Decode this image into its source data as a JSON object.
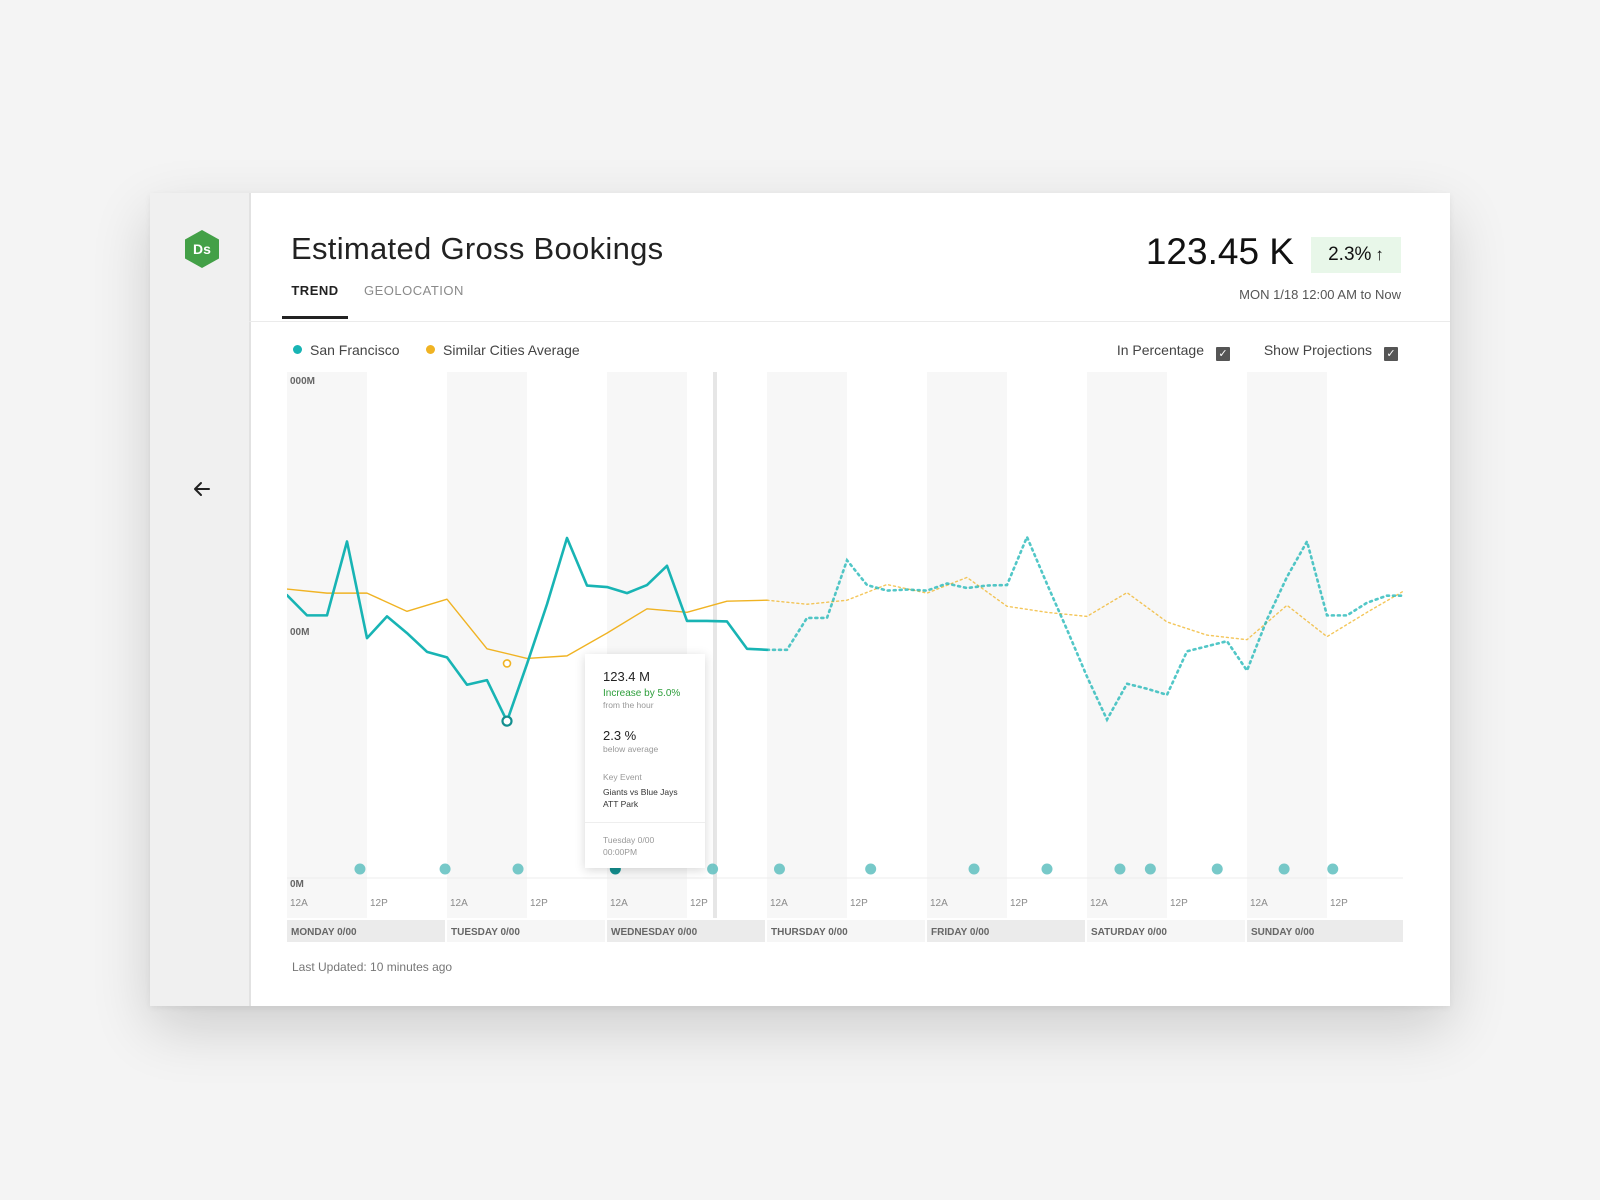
{
  "app": {
    "logo_text": "Ds",
    "back_icon": "arrow-left-icon"
  },
  "header": {
    "title": "Estimated Gross Bookings",
    "tabs": [
      {
        "label": "TREND",
        "active": true
      },
      {
        "label": "GEOLOCATION",
        "active": false
      }
    ],
    "metric_value": "123.45 K",
    "metric_change": "2.3%",
    "metric_change_icon": "arrow-up-icon",
    "date_range": "MON 1/18 12:00 AM to Now"
  },
  "legend": {
    "items": [
      {
        "label": "San Francisco",
        "color": "#18b4b4"
      },
      {
        "label": "Similar Cities Average",
        "color": "#f0b323"
      }
    ]
  },
  "toggles": {
    "percentage": {
      "label": "In Percentage",
      "checked": true
    },
    "projections": {
      "label": "Show Projections",
      "checked": true
    }
  },
  "chart_data": {
    "type": "line",
    "ylabels": [
      "000M",
      "00M",
      "0M"
    ],
    "x_ticks": [
      "12A",
      "12P"
    ],
    "days": [
      "MONDAY 0/00",
      "TUESDAY 0/00",
      "WEDNESDAY 0/00",
      "THURSDAY 0/00",
      "FRIDAY 0/00",
      "SATURDAY 0/00",
      "SUNDAY 0/00"
    ],
    "series": [
      {
        "name": "San Francisco",
        "color": "#18b4b4",
        "x": [
          0,
          0.25,
          0.5,
          0.75,
          1,
          1.25,
          1.5,
          1.75,
          2,
          2.25,
          2.5,
          2.75,
          3,
          3.25,
          3.5,
          3.75,
          4,
          4.25,
          4.5,
          4.75,
          5,
          5.25,
          5.5,
          5.75,
          6,
          6.25,
          6.5,
          6.75,
          7,
          7.25,
          7.5,
          7.75,
          8,
          8.25,
          8.5,
          8.75,
          9,
          9.25,
          9.5,
          9.75,
          10,
          10.25,
          10.5,
          10.75,
          11,
          11.25,
          11.5,
          11.75,
          12,
          12.25,
          12.5,
          12.75,
          13,
          13.25,
          13.5,
          13.75,
          14
        ],
        "y": [
          0.559,
          0.519,
          0.519,
          0.665,
          0.474,
          0.517,
          0.484,
          0.447,
          0.436,
          0.382,
          0.391,
          0.31,
          0.423,
          0.541,
          0.672,
          0.578,
          0.575,
          0.563,
          0.579,
          0.617,
          0.508,
          0.508,
          0.507,
          0.453,
          0.451,
          0.451,
          0.514,
          0.514,
          0.628,
          0.579,
          0.568,
          0.57,
          0.568,
          0.582,
          0.573,
          0.578,
          0.579,
          0.674,
          0.581,
          0.491,
          0.398,
          0.313,
          0.384,
          0.374,
          0.362,
          0.448,
          0.458,
          0.468,
          0.41,
          0.511,
          0.595,
          0.665,
          0.519,
          0.519,
          0.544,
          0.558,
          0.558
        ],
        "projected_from_index": 24
      },
      {
        "name": "Similar Cities Average",
        "color": "#f0b323",
        "x": [
          0,
          0.5,
          1,
          1.5,
          2,
          2.5,
          3,
          3.5,
          4,
          4.5,
          5,
          5.5,
          6,
          6.5,
          7,
          7.5,
          8,
          8.5,
          9,
          9.5,
          10,
          10.5,
          11,
          11.5,
          12,
          12.5,
          13,
          13.5,
          14
        ],
        "y": [
          0.571,
          0.563,
          0.563,
          0.527,
          0.551,
          0.453,
          0.434,
          0.439,
          0.484,
          0.532,
          0.525,
          0.547,
          0.549,
          0.541,
          0.549,
          0.58,
          0.563,
          0.594,
          0.537,
          0.525,
          0.517,
          0.564,
          0.506,
          0.48,
          0.471,
          0.539,
          0.477,
          0.525,
          0.571
        ],
        "projected_from_index": 12
      }
    ],
    "event_markers_x": [
      1.2,
      2.6,
      3.8,
      5.4,
      7.0,
      8.1,
      9.6,
      11.3,
      12.5,
      13.7,
      14.2,
      15.3,
      16.4,
      17.2
    ]
  },
  "tooltip": {
    "value": "123.4 M",
    "increase": "Increase by 5.0%",
    "increase_sub": "from the hour",
    "percent": "2.3 %",
    "percent_sub": "below average",
    "event_label": "Key Event",
    "event_line1": "Giants vs Blue Jays",
    "event_line2": "ATT Park",
    "time_line1": "Tuesday 0/00",
    "time_line2": "00:00PM"
  },
  "footer": {
    "last_updated": "Last Updated: 10 minutes ago"
  }
}
